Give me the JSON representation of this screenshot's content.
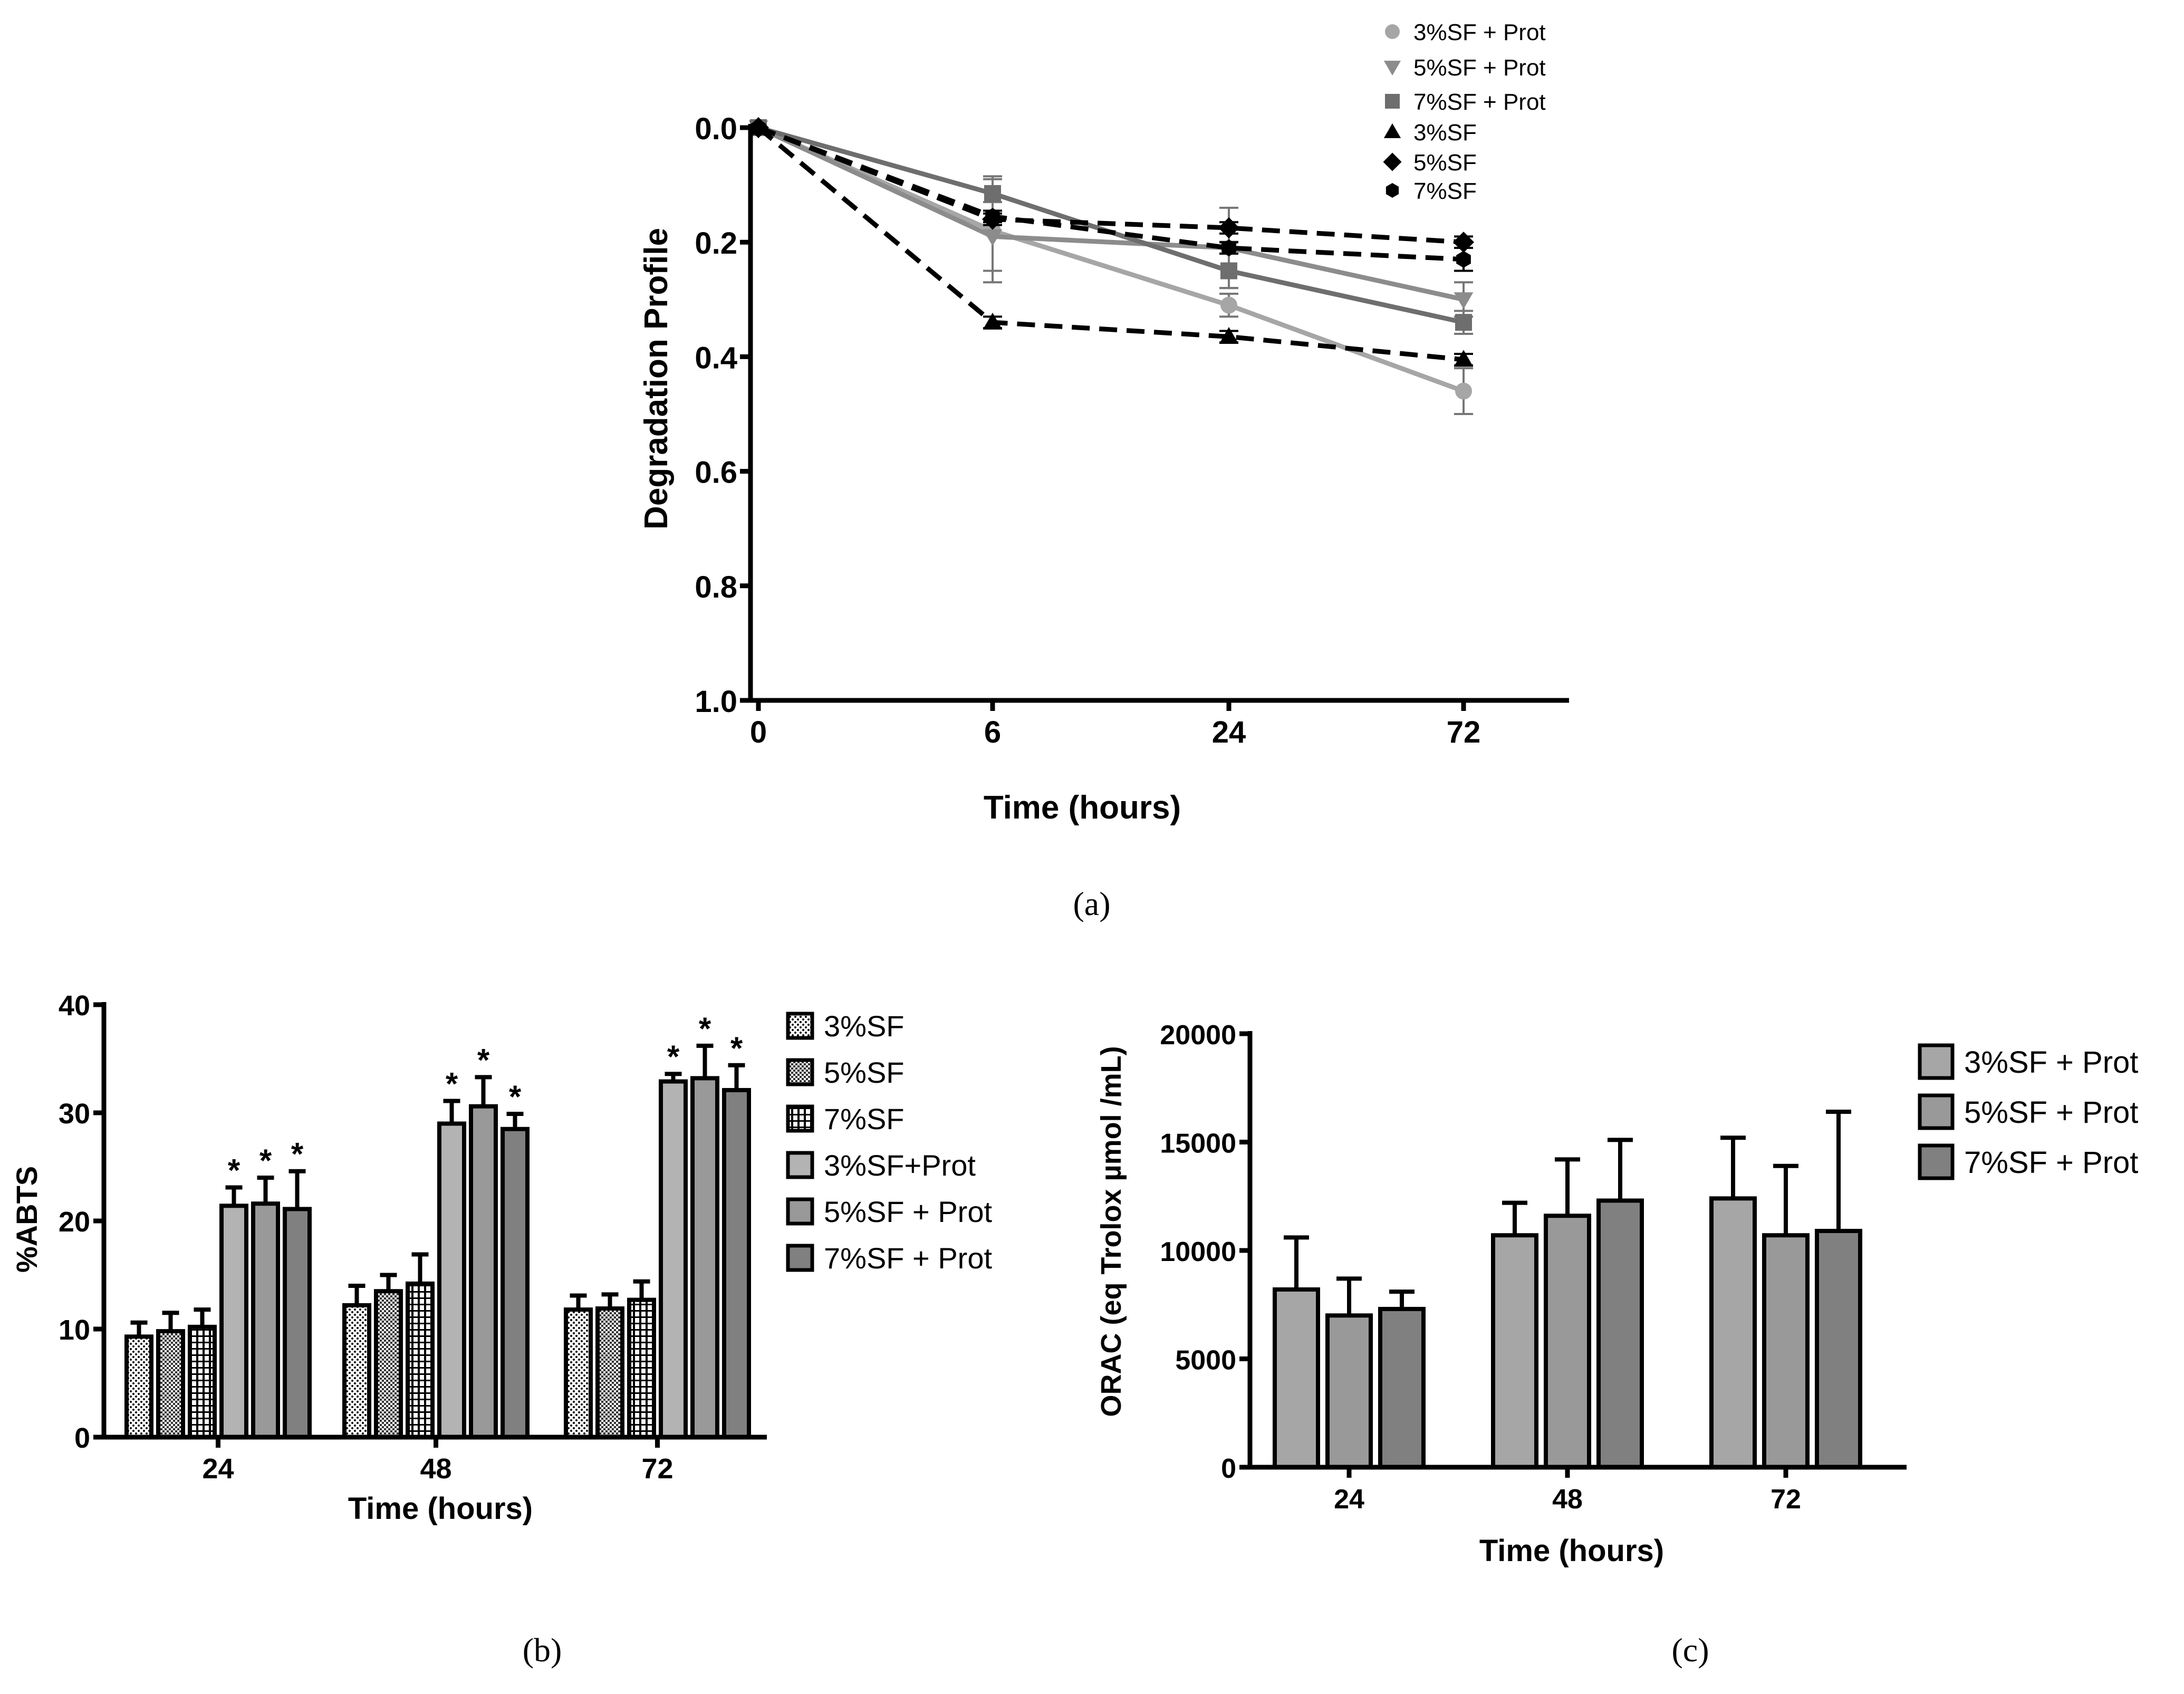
{
  "chart_data": [
    {
      "id": "a",
      "type": "line",
      "caption": "(a)",
      "xlabel": "Time (hours)",
      "ylabel": "Degradation Profile",
      "categories": [
        "0",
        "6",
        "24",
        "72"
      ],
      "y_ticks": [
        "0.0",
        "0.2",
        "0.4",
        "0.6",
        "0.8",
        "1.0"
      ],
      "ylim": [
        0,
        1
      ],
      "y_inverted": true,
      "legend_position": "top-right",
      "series": [
        {
          "name": "3%SF + Prot",
          "values": [
            0,
            0.18,
            0.31,
            0.46
          ],
          "errors": [
            0,
            0.09,
            0.02,
            0.04
          ],
          "color": "#a6a6a6",
          "marker": "circle",
          "dash": "solid"
        },
        {
          "name": "5%SF + Prot",
          "values": [
            0,
            0.19,
            0.21,
            0.3
          ],
          "errors": [
            0,
            0.06,
            0.07,
            0.03
          ],
          "color": "#8c8c8c",
          "marker": "triangle-down",
          "dash": "solid"
        },
        {
          "name": "7%SF + Prot",
          "values": [
            0,
            0.115,
            0.25,
            0.34
          ],
          "errors": [
            0,
            0.03,
            0.03,
            0.02
          ],
          "color": "#6e6e6e",
          "marker": "square",
          "dash": "solid"
        },
        {
          "name": "3%SF",
          "values": [
            0,
            0.34,
            0.365,
            0.405
          ],
          "errors": [
            0,
            0.01,
            0.01,
            0.01
          ],
          "color": "#000000",
          "marker": "triangle-up",
          "dash": "dashed"
        },
        {
          "name": "5%SF",
          "values": [
            0,
            0.16,
            0.175,
            0.2
          ],
          "errors": [
            0,
            0.01,
            0.01,
            0.01
          ],
          "color": "#000000",
          "marker": "diamond",
          "dash": "dashed"
        },
        {
          "name": "7%SF",
          "values": [
            0,
            0.155,
            0.21,
            0.23
          ],
          "errors": [
            0,
            0.01,
            0.01,
            0.02
          ],
          "color": "#000000",
          "marker": "hexagon",
          "dash": "dashed"
        }
      ]
    },
    {
      "id": "b",
      "type": "bar",
      "caption": "(b)",
      "xlabel": "Time (hours)",
      "ylabel": "%ABTS",
      "categories": [
        "24",
        "48",
        "72"
      ],
      "y_ticks": [
        "0",
        "10",
        "20",
        "30",
        "40"
      ],
      "ylim": [
        0,
        40
      ],
      "significance_marker": "*",
      "legend_position": "right",
      "series": [
        {
          "name": "3%SF",
          "values": [
            9.3,
            12.2,
            11.8
          ],
          "errors": [
            1.3,
            1.8,
            1.3
          ],
          "fill": "#ffffff",
          "pattern": "dots",
          "significant": false
        },
        {
          "name": "5%SF",
          "values": [
            9.8,
            13.5,
            11.9
          ],
          "errors": [
            1.7,
            1.5,
            1.3
          ],
          "fill": "#ffffff",
          "pattern": "dense",
          "significant": false
        },
        {
          "name": "7%SF",
          "values": [
            10.2,
            14.2,
            12.7
          ],
          "errors": [
            1.6,
            2.7,
            1.7
          ],
          "fill": "#ffffff",
          "pattern": "grid",
          "significant": false
        },
        {
          "name": "3%SF+Prot",
          "values": [
            21.4,
            29.0,
            32.9
          ],
          "errors": [
            1.7,
            2.1,
            0.7
          ],
          "fill": "#b3b3b3",
          "pattern": "none",
          "significant": true
        },
        {
          "name": "5%SF + Prot",
          "values": [
            21.6,
            30.6,
            33.2
          ],
          "errors": [
            2.4,
            2.7,
            3.0
          ],
          "fill": "#999999",
          "pattern": "none",
          "significant": true
        },
        {
          "name": "7%SF + Prot",
          "values": [
            21.1,
            28.5,
            32.1
          ],
          "errors": [
            3.5,
            1.4,
            2.3
          ],
          "fill": "#808080",
          "pattern": "none",
          "significant": true
        }
      ]
    },
    {
      "id": "c",
      "type": "bar",
      "caption": "(c)",
      "xlabel": "Time (hours)",
      "ylabel": "ORAC (eq Trolox µmol /mL)",
      "categories": [
        "24",
        "48",
        "72"
      ],
      "y_ticks": [
        "0",
        "5000",
        "10000",
        "15000",
        "20000"
      ],
      "ylim": [
        0,
        20000
      ],
      "legend_position": "top-right",
      "series": [
        {
          "name": "3%SF + Prot",
          "values": [
            8200,
            10700,
            12400
          ],
          "errors": [
            2400,
            1500,
            2800
          ],
          "fill": "#a6a6a6"
        },
        {
          "name": "5%SF + Prot",
          "values": [
            7000,
            11600,
            10700
          ],
          "errors": [
            1700,
            2600,
            3200
          ],
          "fill": "#999999"
        },
        {
          "name": "7%SF + Prot",
          "values": [
            7300,
            12300,
            10900
          ],
          "errors": [
            800,
            2800,
            5500
          ],
          "fill": "#808080"
        }
      ]
    }
  ]
}
